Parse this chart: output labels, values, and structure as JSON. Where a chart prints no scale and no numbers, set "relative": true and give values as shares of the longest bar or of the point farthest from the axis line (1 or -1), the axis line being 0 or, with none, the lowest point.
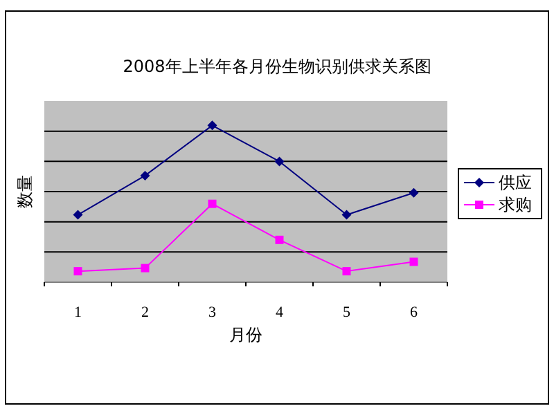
{
  "chart_data": {
    "type": "line",
    "title": "2008年上半年各月份生物识别供求关系图",
    "xlabel": "月份",
    "ylabel": "数量",
    "categories": [
      "1",
      "2",
      "3",
      "4",
      "5",
      "6"
    ],
    "relative": true,
    "grid": "y",
    "legend": "right",
    "series": [
      {
        "name": "供应",
        "color": "#000080",
        "marker": "diamond",
        "values": [
          0.43,
          0.68,
          1,
          0.77,
          0.43,
          0.57
        ]
      },
      {
        "name": "求购",
        "color": "#ff00ff",
        "marker": "square",
        "values": [
          0.07,
          0.09,
          0.5,
          0.27,
          0.07,
          0.13
        ]
      }
    ]
  }
}
